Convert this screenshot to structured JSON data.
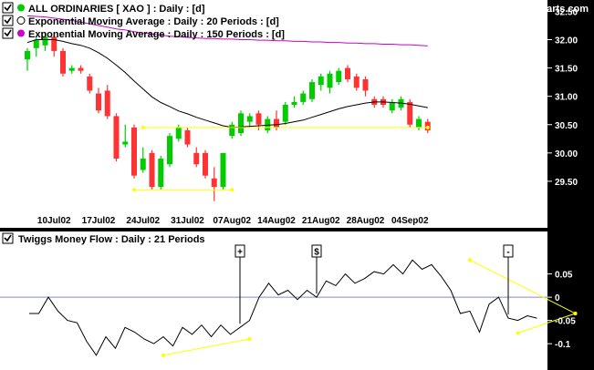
{
  "site": "www.incrediblecharts.com",
  "colors": {
    "background": "#000000",
    "panel": "#ffffff",
    "ema20": "#000000",
    "ema150": "#cc00cc",
    "up": "#00cc00",
    "down": "#ff3333",
    "trendline": "#ffff00",
    "zero_line": "#8888dd"
  },
  "legend": {
    "price": "ALL ORDINARIES  [ XAO ] : Daily : [d]",
    "ema20": "Exponential Moving Average : Daily : 20 Periods : [d]",
    "ema150": "Exponential Moving Average : Daily : 150 Periods : [d]",
    "tmf": "Twiggs Money Flow : Daily : 21 Periods"
  },
  "icons": [
    "check-icon",
    "dot-icon"
  ],
  "signals": [
    "+",
    "$",
    "-"
  ],
  "chart_data": [
    {
      "type": "candlestick",
      "x_labels": [
        "10Jul02",
        "17Jul02",
        "24Jul02",
        "31Jul02",
        "07Aug02",
        "14Aug02",
        "21Aug02",
        "28Aug02",
        "04Sep02"
      ],
      "y_ticks": [
        "32.50",
        "32.00",
        "31.50",
        "31.00",
        "30.50",
        "30.00",
        "29.50"
      ],
      "ylim": [
        29.0,
        32.7
      ],
      "candles": [
        {
          "o": 31.65,
          "h": 31.85,
          "l": 31.45,
          "c": 31.8
        },
        {
          "o": 31.85,
          "h": 32.05,
          "l": 31.7,
          "c": 32.0
        },
        {
          "o": 31.9,
          "h": 32.1,
          "l": 31.8,
          "c": 32.05
        },
        {
          "o": 32.05,
          "h": 32.1,
          "l": 31.7,
          "c": 31.8
        },
        {
          "o": 31.8,
          "h": 31.85,
          "l": 31.35,
          "c": 31.4
        },
        {
          "o": 31.45,
          "h": 31.55,
          "l": 31.4,
          "c": 31.5
        },
        {
          "o": 31.5,
          "h": 31.55,
          "l": 31.4,
          "c": 31.45
        },
        {
          "o": 31.35,
          "h": 31.4,
          "l": 31.05,
          "c": 31.1
        },
        {
          "o": 31.05,
          "h": 31.15,
          "l": 30.7,
          "c": 30.75
        },
        {
          "o": 31.1,
          "h": 31.2,
          "l": 30.6,
          "c": 30.65
        },
        {
          "o": 30.65,
          "h": 30.7,
          "l": 29.85,
          "c": 29.9
        },
        {
          "o": 30.15,
          "h": 30.5,
          "l": 30.1,
          "c": 30.2
        },
        {
          "o": 30.45,
          "h": 30.5,
          "l": 29.55,
          "c": 29.6
        },
        {
          "o": 29.7,
          "h": 30.1,
          "l": 29.65,
          "c": 29.9
        },
        {
          "o": 30.0,
          "h": 30.05,
          "l": 29.35,
          "c": 29.4
        },
        {
          "o": 29.4,
          "h": 29.95,
          "l": 29.35,
          "c": 29.9
        },
        {
          "o": 29.8,
          "h": 30.35,
          "l": 29.75,
          "c": 30.3
        },
        {
          "o": 30.25,
          "h": 30.5,
          "l": 30.2,
          "c": 30.45
        },
        {
          "o": 30.4,
          "h": 30.45,
          "l": 30.1,
          "c": 30.15
        },
        {
          "o": 30.0,
          "h": 30.1,
          "l": 29.75,
          "c": 29.8
        },
        {
          "o": 30.0,
          "h": 30.05,
          "l": 29.55,
          "c": 29.6
        },
        {
          "o": 29.55,
          "h": 29.75,
          "l": 29.15,
          "c": 29.4
        },
        {
          "o": 29.4,
          "h": 30.0,
          "l": 29.35,
          "c": 30.0
        },
        {
          "o": 30.3,
          "h": 30.55,
          "l": 30.25,
          "c": 30.5
        },
        {
          "o": 30.35,
          "h": 30.75,
          "l": 30.3,
          "c": 30.7
        },
        {
          "o": 30.55,
          "h": 30.7,
          "l": 30.45,
          "c": 30.65
        },
        {
          "o": 30.7,
          "h": 30.75,
          "l": 30.4,
          "c": 30.5
        },
        {
          "o": 30.4,
          "h": 30.65,
          "l": 30.35,
          "c": 30.6
        },
        {
          "o": 30.6,
          "h": 30.75,
          "l": 30.4,
          "c": 30.45
        },
        {
          "o": 30.55,
          "h": 30.9,
          "l": 30.5,
          "c": 30.85
        },
        {
          "o": 30.85,
          "h": 31.0,
          "l": 30.8,
          "c": 30.9
        },
        {
          "o": 30.9,
          "h": 31.1,
          "l": 30.85,
          "c": 31.05
        },
        {
          "o": 30.95,
          "h": 31.3,
          "l": 30.9,
          "c": 31.25
        },
        {
          "o": 31.2,
          "h": 31.4,
          "l": 31.1,
          "c": 31.35
        },
        {
          "o": 31.15,
          "h": 31.45,
          "l": 31.05,
          "c": 31.4
        },
        {
          "o": 31.25,
          "h": 31.5,
          "l": 31.2,
          "c": 31.45
        },
        {
          "o": 31.5,
          "h": 31.55,
          "l": 31.25,
          "c": 31.3
        },
        {
          "o": 31.35,
          "h": 31.4,
          "l": 31.1,
          "c": 31.15
        },
        {
          "o": 31.3,
          "h": 31.35,
          "l": 31.0,
          "c": 31.1
        },
        {
          "o": 30.95,
          "h": 31.0,
          "l": 30.8,
          "c": 30.85
        },
        {
          "o": 30.95,
          "h": 31.0,
          "l": 30.8,
          "c": 30.85
        },
        {
          "o": 30.75,
          "h": 30.95,
          "l": 30.7,
          "c": 30.9
        },
        {
          "o": 30.8,
          "h": 31.0,
          "l": 30.75,
          "c": 30.95
        },
        {
          "o": 30.9,
          "h": 30.95,
          "l": 30.45,
          "c": 30.5
        },
        {
          "o": 30.45,
          "h": 30.65,
          "l": 30.4,
          "c": 30.6
        },
        {
          "o": 30.55,
          "h": 30.6,
          "l": 30.35,
          "c": 30.4
        }
      ],
      "ema20": [
        31.95,
        32.0,
        32.0,
        32.0,
        31.97,
        31.93,
        31.9,
        31.85,
        31.77,
        31.67,
        31.55,
        31.42,
        31.27,
        31.13,
        30.99,
        30.89,
        30.82,
        30.74,
        30.69,
        30.63,
        30.58,
        30.53,
        30.48,
        30.45,
        30.46,
        30.47,
        30.48,
        30.49,
        30.5,
        30.52,
        30.55,
        30.58,
        30.63,
        30.68,
        30.73,
        30.78,
        30.82,
        30.85,
        30.88,
        30.9,
        30.9,
        30.89,
        30.88,
        30.86,
        30.83,
        30.8
      ],
      "ema150": [
        32.42,
        32.41,
        32.4,
        32.38,
        32.36,
        32.34,
        32.31,
        32.28,
        32.25,
        32.22,
        32.19,
        32.17,
        32.14,
        32.12,
        32.1,
        32.08,
        32.06,
        32.05,
        32.04,
        32.03,
        32.02,
        32.02,
        32.01,
        32.01,
        32.0,
        32.0,
        31.99,
        31.99,
        31.98,
        31.98,
        31.97,
        31.97,
        31.96,
        31.96,
        31.95,
        31.95,
        31.94,
        31.94,
        31.93,
        31.93,
        31.92,
        31.92,
        31.91,
        31.91,
        31.9,
        31.89
      ],
      "trendlines": [
        {
          "from": [
            13,
            30.45
          ],
          "to": [
            45,
            30.45
          ]
        },
        {
          "from": [
            12,
            29.35
          ],
          "to": [
            23,
            29.35
          ]
        }
      ]
    },
    {
      "type": "line",
      "y_ticks": [
        "0.05",
        "0",
        "-0.05",
        "-0.1"
      ],
      "ylim": [
        -0.135,
        0.11
      ],
      "values": [
        -0.035,
        -0.035,
        0.0,
        -0.03,
        -0.05,
        -0.055,
        -0.095,
        -0.125,
        -0.085,
        -0.11,
        -0.065,
        -0.075,
        -0.09,
        -0.1,
        -0.085,
        -0.105,
        -0.065,
        -0.08,
        -0.06,
        -0.085,
        -0.06,
        -0.08,
        -0.065,
        -0.05,
        0.0,
        0.03,
        0.005,
        0.015,
        -0.005,
        0.015,
        0.0,
        0.035,
        0.025,
        0.05,
        0.03,
        0.04,
        0.055,
        0.05,
        0.07,
        0.05,
        0.08,
        0.06,
        0.07,
        0.045,
        0.015,
        -0.035,
        -0.03,
        -0.075,
        -0.015,
        0.0,
        -0.045,
        -0.05,
        -0.04,
        -0.045
      ],
      "trendlines": [
        {
          "from": [
            14,
            -0.125
          ],
          "to": [
            23,
            -0.09
          ]
        },
        {
          "from": [
            46,
            0.08
          ],
          "to": [
            57,
            -0.035
          ]
        },
        {
          "from": [
            51,
            -0.077
          ],
          "to": [
            57,
            -0.035
          ]
        }
      ],
      "signals": [
        {
          "index": 22,
          "label": "+"
        },
        {
          "index": 30,
          "label": "$"
        },
        {
          "index": 50,
          "label": "-"
        }
      ]
    }
  ]
}
